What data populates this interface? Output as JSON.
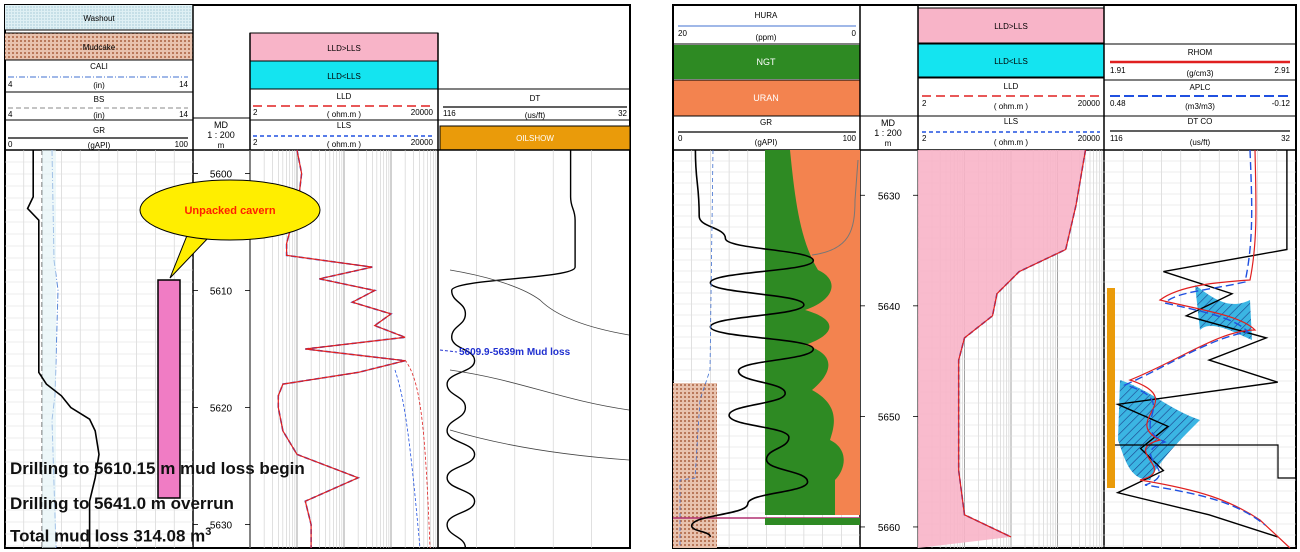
{
  "left_panel": {
    "header": {
      "washout": "Washout",
      "mudcake": "Mudcake",
      "cali": {
        "name": "CALI",
        "min": "4",
        "unit": "(in)",
        "max": "14"
      },
      "bs": {
        "name": "BS",
        "min": "4",
        "unit": "(in)",
        "max": "14"
      },
      "gr": {
        "name": "GR",
        "min": "0",
        "unit": "(gAPI)",
        "max": "100"
      },
      "md": {
        "line1": "MD",
        "line2": "1 : 200",
        "line3": "m"
      },
      "lld_gt_lls": "LLD>LLS",
      "lld_lt_lls": "LLD<LLS",
      "lld": {
        "name": "LLD",
        "min": "2",
        "unit": "( ohm.m )",
        "max": "20000"
      },
      "lls": {
        "name": "LLS",
        "min": "2",
        "unit": "( ohm.m )",
        "max": "20000"
      },
      "dt": {
        "name": "DT",
        "min": "116",
        "unit": "(us/ft)",
        "max": "32"
      },
      "oilshow": "OILSHOW"
    },
    "depth_ticks": [
      "5600",
      "5610",
      "5620",
      "5630"
    ],
    "callout": "Unpacked cavern",
    "mud_loss_label": "5609.9-5639m Mud loss",
    "notes": {
      "line1": "Drilling to 5610.15 m mud loss begin",
      "line2": "Drilling to 5641.0 m overrun",
      "line3": "Total mud loss 314.08 m",
      "line3_sup": "3"
    }
  },
  "right_panel": {
    "header": {
      "hura": {
        "name": "HURA",
        "min": "20",
        "unit": "(ppm)",
        "max": "0"
      },
      "ngt": "NGT",
      "uran": "URAN",
      "gr": {
        "name": "GR",
        "min": "0",
        "unit": "(gAPI)",
        "max": "100"
      },
      "md": {
        "line1": "MD",
        "line2": "1 : 200",
        "line3": "m"
      },
      "lld_gt_lls": "LLD>LLS",
      "lld_lt_lls": "LLD<LLS",
      "lld": {
        "name": "LLD",
        "min": "2",
        "unit": "( ohm.m )",
        "max": "20000"
      },
      "lls": {
        "name": "LLS",
        "min": "2",
        "unit": "( ohm.m )",
        "max": "20000"
      },
      "rhom": {
        "name": "RHOM",
        "min": "1.91",
        "unit": "(g/cm3)",
        "max": "2.91"
      },
      "aplc": {
        "name": "APLC",
        "min": "0.48",
        "unit": "(m3/m3)",
        "max": "-0.12"
      },
      "dtco": {
        "name": "DT CO",
        "min": "116",
        "unit": "(us/ft)",
        "max": "32"
      }
    },
    "depth_ticks": [
      "5630",
      "5640",
      "5650",
      "5660"
    ]
  },
  "colors": {
    "washout": "#cde8ee",
    "mudcake": "#d9a88d",
    "lld_gt_lls": "#f8b4c8",
    "lld_lt_lls": "#14e4f0",
    "oilshow": "#ea9b0a",
    "ngt": "#2e8a23",
    "uran": "#f3834f",
    "callout": "#ffee00",
    "cavern": "#f07cc4",
    "lld_curve": "#e02020",
    "lls_curve": "#2050e0",
    "gr_curve": "#000000"
  },
  "chart_data": [
    {
      "type": "line",
      "title": "",
      "depth_unit": "m",
      "depth_range": [
        5598,
        5632
      ],
      "tracks": [
        {
          "name": "GR",
          "range": [
            0,
            100
          ],
          "scale": "linear",
          "depth": [
            5598,
            5602,
            5603,
            5604,
            5606,
            5610,
            5615,
            5617,
            5618,
            5619,
            5620,
            5621,
            5622,
            5624,
            5626,
            5628,
            5630,
            5632
          ],
          "values": [
            15,
            15,
            12,
            18,
            18,
            18,
            18,
            18,
            22,
            30,
            35,
            45,
            48,
            50,
            48,
            45,
            45,
            45
          ]
        },
        {
          "name": "LLD",
          "range": [
            2,
            20000
          ],
          "scale": "log",
          "depth": [
            5598,
            5600,
            5602,
            5606,
            5607,
            5608,
            5609,
            5610,
            5611,
            5612,
            5613,
            5614,
            5615,
            5616,
            5617,
            5618,
            5619,
            5620,
            5622,
            5624,
            5626,
            5628,
            5630,
            5632
          ],
          "values": [
            20,
            25,
            22,
            12,
            12,
            800,
            60,
            900,
            300,
            2000,
            900,
            4000,
            30,
            4000,
            400,
            10,
            8,
            8,
            10,
            20,
            400,
            30,
            40,
            40
          ]
        },
        {
          "name": "DT",
          "range": [
            116,
            32
          ],
          "scale": "linear",
          "depth": [
            5598,
            5602,
            5604,
            5606,
            5608,
            5610,
            5612,
            5614,
            5616,
            5618,
            5620,
            5622,
            5624,
            5626,
            5628,
            5630,
            5632
          ],
          "values": [
            58,
            58,
            56,
            56,
            56,
            110,
            104,
            110,
            100,
            112,
            104,
            112,
            100,
            112,
            100,
            112,
            104
          ]
        }
      ]
    },
    {
      "type": "line",
      "title": "",
      "depth_unit": "m",
      "depth_range": [
        5625,
        5661
      ],
      "tracks": [
        {
          "name": "GR",
          "range": [
            0,
            100
          ],
          "scale": "linear",
          "depth": [
            5625,
            5631,
            5633,
            5635,
            5637,
            5639,
            5641,
            5643,
            5645,
            5647,
            5649,
            5651,
            5653,
            5655,
            5657,
            5659,
            5660
          ],
          "values": [
            12,
            14,
            28,
            75,
            20,
            70,
            20,
            75,
            35,
            60,
            30,
            62,
            50,
            72,
            40,
            10,
            20
          ]
        },
        {
          "name": "LLD",
          "range": [
            2,
            20000
          ],
          "scale": "log",
          "depth": [
            5625,
            5630,
            5634,
            5636,
            5638,
            5640,
            5642,
            5644,
            5646,
            5650,
            5654,
            5658,
            5660
          ],
          "values": [
            8000,
            5000,
            3000,
            300,
            100,
            80,
            20,
            15,
            15,
            15,
            15,
            20,
            200
          ]
        },
        {
          "name": "DT CO",
          "range": [
            116,
            32
          ],
          "scale": "linear",
          "depth": [
            5625,
            5634,
            5636,
            5638,
            5640,
            5642,
            5644,
            5646,
            5648,
            5650,
            5652,
            5654,
            5656,
            5658,
            5660
          ],
          "values": [
            36,
            36,
            90,
            60,
            80,
            45,
            70,
            40,
            110,
            88,
            100,
            90,
            110,
            70,
            40
          ]
        }
      ]
    }
  ]
}
